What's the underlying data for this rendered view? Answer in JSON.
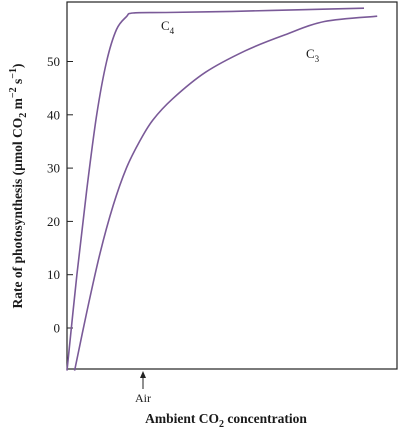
{
  "chart_data": {
    "type": "line",
    "xlabel": {
      "main": "Ambient CO",
      "sub": "2",
      "rest": " concentration"
    },
    "ylabel": {
      "p1": "Rate of photosynthesis (µmol CO",
      "sub1": "2",
      "p2": " m",
      "sup1": "−2",
      "p3": " s",
      "sup2": "−1",
      "p4": ")"
    },
    "ylim": [
      -8,
      60
    ],
    "yticks": [
      0,
      10,
      20,
      30,
      40,
      50
    ],
    "ytick_labels": [
      "0",
      "10",
      "20",
      "30",
      "40",
      "50"
    ],
    "xlim": [
      0,
      100
    ],
    "x_axis_numeric_labels": false,
    "grid": false,
    "legend": "none",
    "annotations": [
      {
        "text": "Air",
        "x": 25.5,
        "arrow": "up"
      }
    ],
    "series": [
      {
        "name": "C4",
        "label_main": "C",
        "label_sub": "4",
        "color": "#7a5a98",
        "points": [
          [
            0,
            -8
          ],
          [
            3,
            10
          ],
          [
            6,
            26
          ],
          [
            9,
            40
          ],
          [
            12,
            50
          ],
          [
            15,
            56
          ],
          [
            18,
            58.4
          ],
          [
            20,
            59.1
          ],
          [
            30,
            59.2
          ],
          [
            50,
            59.4
          ],
          [
            70,
            59.7
          ],
          [
            90,
            60
          ]
        ]
      },
      {
        "name": "C3",
        "label_main": "C",
        "label_sub": "3",
        "color": "#7a5a98",
        "points": [
          [
            2.3,
            -8
          ],
          [
            6,
            3
          ],
          [
            10,
            14
          ],
          [
            14,
            23
          ],
          [
            18,
            30
          ],
          [
            22,
            35
          ],
          [
            26,
            39
          ],
          [
            32,
            43
          ],
          [
            42,
            48
          ],
          [
            54,
            52
          ],
          [
            66,
            55
          ],
          [
            78,
            57.5
          ],
          [
            94,
            58.5
          ]
        ]
      }
    ]
  }
}
